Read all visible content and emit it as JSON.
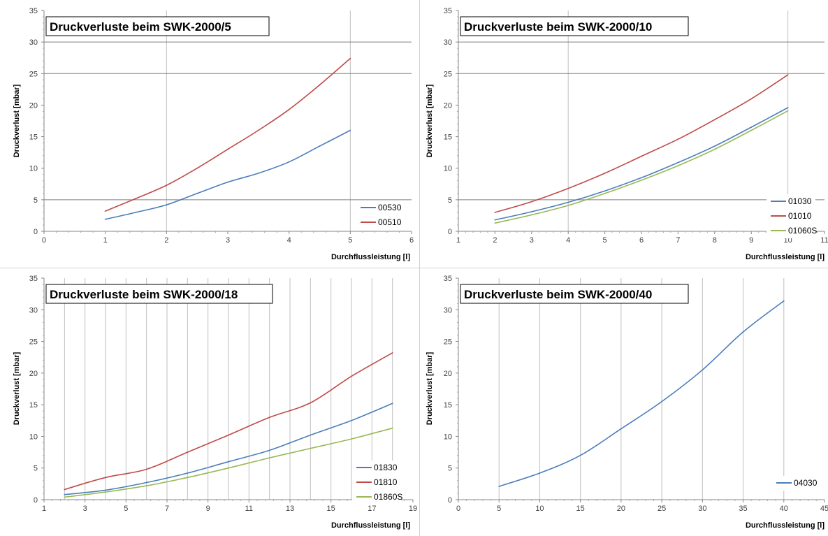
{
  "colors": {
    "blue": "#4a7ebb",
    "red": "#be4b48",
    "green": "#98b954",
    "grid": "#bfbfbf",
    "hline": "#7f7f7f"
  },
  "chart_data": [
    {
      "type": "line",
      "title": "Druckverluste beim SWK-2000/5",
      "xlabel": "Durchflussleistung [l]",
      "ylabel": "Druckverlust [mbar]",
      "xlim": [
        0,
        6
      ],
      "ylim": [
        0,
        35
      ],
      "xticks": [
        "0",
        "1",
        "2",
        "3",
        "4",
        "5",
        "6"
      ],
      "yticks": [
        "0",
        "5",
        "10",
        "15",
        "20",
        "25",
        "30",
        "35"
      ],
      "vertical_grid": [
        2,
        5
      ],
      "horizontal_lines": [
        5,
        25,
        30
      ],
      "legend": "right",
      "series": [
        {
          "name": "00530",
          "color": "#4a7ebb",
          "x": [
            1,
            1.5,
            2,
            2.5,
            3,
            3.5,
            4,
            4.5,
            5
          ],
          "y": [
            1.9,
            3.0,
            4.2,
            6.0,
            7.8,
            9.2,
            11.0,
            13.5,
            16.0
          ]
        },
        {
          "name": "00510",
          "color": "#be4b48",
          "x": [
            1,
            1.5,
            2,
            2.5,
            3,
            3.5,
            4,
            4.5,
            5
          ],
          "y": [
            3.2,
            5.2,
            7.3,
            10.0,
            13.0,
            16.0,
            19.3,
            23.2,
            27.4
          ]
        }
      ]
    },
    {
      "type": "line",
      "title": "Druckverluste beim SWK-2000/10",
      "xlabel": "Durchflussleistung [l]",
      "ylabel": "Druckverlust [mbar]",
      "xlim": [
        1,
        11
      ],
      "ylim": [
        0,
        35
      ],
      "xticks": [
        "1",
        "2",
        "3",
        "4",
        "5",
        "6",
        "7",
        "8",
        "9",
        "10",
        "11"
      ],
      "yticks": [
        "0",
        "5",
        "10",
        "15",
        "20",
        "25",
        "30",
        "35"
      ],
      "vertical_grid": [
        4,
        10
      ],
      "horizontal_lines": [
        5,
        25,
        30
      ],
      "legend": "right",
      "series": [
        {
          "name": "01030",
          "color": "#4a7ebb",
          "x": [
            2,
            3,
            4,
            5,
            6,
            7,
            8,
            9,
            10
          ],
          "y": [
            1.8,
            3.1,
            4.6,
            6.4,
            8.5,
            10.9,
            13.5,
            16.5,
            19.6
          ]
        },
        {
          "name": "01010",
          "color": "#be4b48",
          "x": [
            2,
            3,
            4,
            5,
            6,
            7,
            8,
            9,
            10
          ],
          "y": [
            3.0,
            4.7,
            6.8,
            9.2,
            11.9,
            14.6,
            17.7,
            21.0,
            24.8
          ]
        },
        {
          "name": "01060S",
          "color": "#98b954",
          "x": [
            2,
            3,
            4,
            5,
            6,
            7,
            8,
            9,
            10
          ],
          "y": [
            1.3,
            2.6,
            4.1,
            6.0,
            8.1,
            10.4,
            13.0,
            16.0,
            19.1
          ]
        }
      ]
    },
    {
      "type": "line",
      "title": "Druckverluste beim SWK-2000/18",
      "xlabel": "Durchflussleistung [l]",
      "ylabel": "Druckverlust [mbar]",
      "xlim": [
        1,
        19
      ],
      "ylim": [
        0,
        35
      ],
      "xticks": [
        "1",
        "3",
        "5",
        "7",
        "9",
        "11",
        "13",
        "15",
        "17",
        "19"
      ],
      "yticks": [
        "0",
        "5",
        "10",
        "15",
        "20",
        "25",
        "30",
        "35"
      ],
      "vertical_grid": [
        2,
        3,
        4,
        5,
        6,
        7,
        8,
        9,
        10,
        11,
        12,
        13,
        14,
        15,
        16,
        17,
        18
      ],
      "horizontal_lines": [],
      "legend": "right",
      "series": [
        {
          "name": "01830",
          "color": "#4a7ebb",
          "x": [
            2,
            4,
            6,
            8,
            10,
            12,
            14,
            16,
            18
          ],
          "y": [
            0.8,
            1.5,
            2.7,
            4.2,
            6.0,
            7.8,
            10.2,
            12.5,
            15.2
          ]
        },
        {
          "name": "01810",
          "color": "#be4b48",
          "x": [
            2,
            4,
            6,
            8,
            10,
            12,
            14,
            16,
            18
          ],
          "y": [
            1.6,
            3.5,
            4.8,
            7.5,
            10.2,
            13.0,
            15.3,
            19.5,
            23.2
          ]
        },
        {
          "name": "01860S",
          "color": "#98b954",
          "x": [
            2,
            4,
            6,
            8,
            10,
            12,
            14,
            16,
            18
          ],
          "y": [
            0.4,
            1.2,
            2.2,
            3.5,
            5.0,
            6.6,
            8.1,
            9.6,
            11.3
          ]
        }
      ]
    },
    {
      "type": "line",
      "title": "Druckverluste beim SWK-2000/40",
      "xlabel": "Durchflussleistung [l]",
      "ylabel": "Druckverlust [mbar]",
      "xlim": [
        0,
        45
      ],
      "ylim": [
        0,
        35
      ],
      "xticks": [
        "0",
        "5",
        "10",
        "15",
        "20",
        "25",
        "30",
        "35",
        "40",
        "45"
      ],
      "yticks": [
        "0",
        "5",
        "10",
        "15",
        "20",
        "25",
        "30",
        "35"
      ],
      "vertical_grid": [
        5,
        10,
        15,
        20,
        25,
        30,
        35,
        40
      ],
      "horizontal_lines": [],
      "legend": "right",
      "series": [
        {
          "name": "04030",
          "color": "#4a7ebb",
          "x": [
            5,
            10,
            15,
            20,
            25,
            30,
            35,
            40
          ],
          "y": [
            2.1,
            4.2,
            7.0,
            11.2,
            15.5,
            20.5,
            26.5,
            31.4
          ]
        }
      ]
    }
  ]
}
